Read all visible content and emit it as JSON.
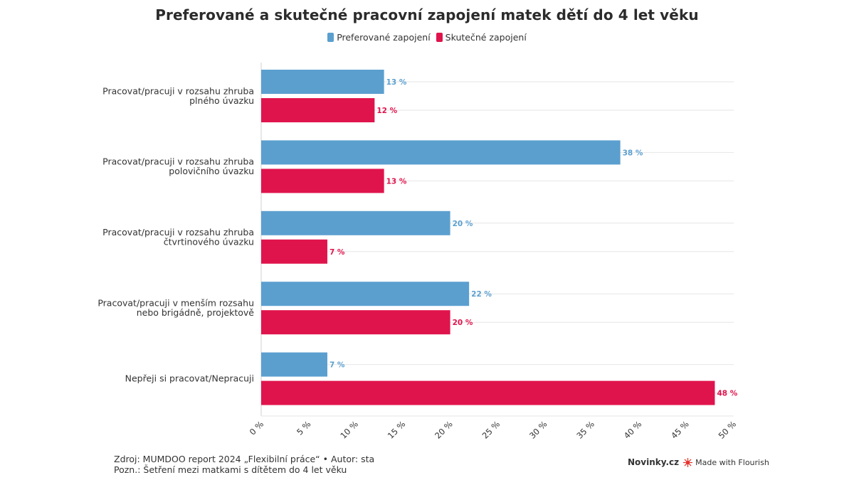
{
  "title": "Preferované a skutečné pracovní zapojení matek dětí do 4 let věku",
  "legend": [
    {
      "name": "Preferované zapojení",
      "color": "#5b9fcf"
    },
    {
      "name": "Skutečné zapojení",
      "color": "#e0144c"
    }
  ],
  "chart_data": {
    "type": "bar",
    "orientation": "horizontal",
    "categories": [
      [
        "Pracovat/pracuji v rozsahu zhruba",
        "plného úvazku"
      ],
      [
        "Pracovat/pracuji v rozsahu zhruba",
        "polovičního úvazku"
      ],
      [
        "Pracovat/pracuji v rozsahu zhruba",
        "čtvrtinového úvazku"
      ],
      [
        "Pracovat/pracuji v menším rozsahu",
        "nebo brigádně, projektově"
      ],
      [
        "Nepřeji si pracovat/Nepracuji"
      ]
    ],
    "series": [
      {
        "name": "Preferované zapojení",
        "color": "#5b9fcf",
        "values": [
          13,
          38,
          20,
          22,
          7
        ],
        "labels": [
          "13 %",
          "38 %",
          "20 %",
          "22 %",
          "7 %"
        ]
      },
      {
        "name": "Skutečné zapojení",
        "color": "#e0144c",
        "values": [
          12,
          13,
          7,
          20,
          48
        ],
        "labels": [
          "12 %",
          "13 %",
          "7 %",
          "20 %",
          "48 %"
        ]
      }
    ],
    "xlim": [
      0,
      50
    ],
    "xticks": [
      0,
      5,
      10,
      15,
      20,
      25,
      30,
      35,
      40,
      45,
      50
    ],
    "xtick_labels": [
      "0 %",
      "5 %",
      "10 %",
      "15 %",
      "20 %",
      "25 %",
      "30 %",
      "35 %",
      "40 %",
      "45 %",
      "50 %"
    ],
    "grid": true,
    "legend_position": "top-center"
  },
  "footer": {
    "source": "Zdroj: MUMDOO report 2024 „Flexibilní práce“ • Autor: sta",
    "note": "Pozn.: Šetření mezi matkami s dítětem do 4 let věku"
  },
  "branding": {
    "publisher": "Novinky.cz",
    "made_with": "Made with Flourish",
    "flourish_color": "#e5342e"
  }
}
